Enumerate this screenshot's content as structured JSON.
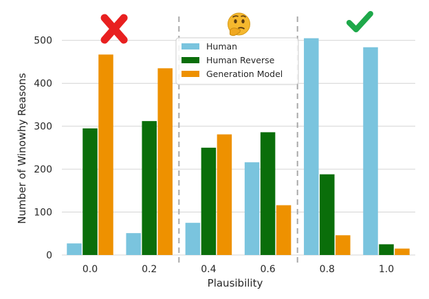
{
  "chart_data": {
    "type": "bar",
    "xlabel": "Plausibility",
    "ylabel": "Number of Winowhy Reasons",
    "categories": [
      "0.0",
      "0.2",
      "0.4",
      "0.6",
      "0.8",
      "1.0"
    ],
    "ylim": [
      0,
      530
    ],
    "yticks": [
      "0",
      "100",
      "200",
      "300",
      "400",
      "500"
    ],
    "grid": "horizontal",
    "legend_position": "top-center",
    "series": [
      {
        "name": "Human",
        "color": "#7ac4de",
        "values": [
          27,
          51,
          75,
          216,
          505,
          484
        ]
      },
      {
        "name": "Human Reverse",
        "color": "#0a6e0a",
        "values": [
          295,
          312,
          250,
          286,
          188,
          25
        ]
      },
      {
        "name": "Generation Model",
        "color": "#ee9100",
        "values": [
          467,
          435,
          281,
          116,
          46,
          15
        ]
      }
    ],
    "region_separators_after": [
      "0.2",
      "0.6"
    ],
    "region_markers": [
      {
        "icon": "red-cross-icon",
        "color": "#e82020"
      },
      {
        "icon": "thinking-face-emoji-icon",
        "color": "#f5b82e"
      },
      {
        "icon": "green-check-icon",
        "color": "#1ea84a"
      }
    ]
  }
}
